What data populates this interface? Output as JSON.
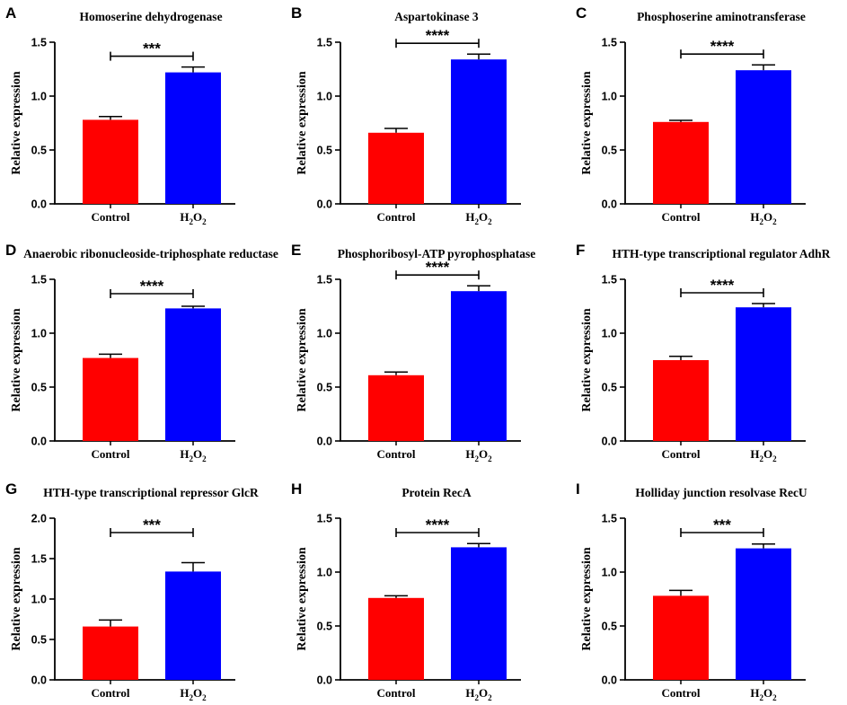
{
  "colors": {
    "control": "#ff0000",
    "treatment": "#0000ff",
    "axis": "#000000"
  },
  "chart_data": [
    {
      "panel": "A",
      "type": "bar",
      "title": "Homoserine dehydrogenase",
      "ylabel": "Relative expression",
      "categories": [
        "Control",
        "H2O2"
      ],
      "values": [
        0.78,
        1.22
      ],
      "errors": [
        0.03,
        0.05
      ],
      "ylim": [
        0,
        1.5
      ],
      "yticks": [
        "0.0",
        "0.5",
        "1.0",
        "1.5"
      ],
      "significance": "***"
    },
    {
      "panel": "B",
      "type": "bar",
      "title": "Aspartokinase 3",
      "ylabel": "Relative expression",
      "categories": [
        "Control",
        "H2O2"
      ],
      "values": [
        0.66,
        1.34
      ],
      "errors": [
        0.04,
        0.05
      ],
      "ylim": [
        0,
        1.5
      ],
      "yticks": [
        "0.0",
        "0.5",
        "1.0",
        "1.5"
      ],
      "significance": "****"
    },
    {
      "panel": "C",
      "type": "bar",
      "title": "Phosphoserine aminotransferase",
      "ylabel": "Relative expression",
      "categories": [
        "Control",
        "H2O2"
      ],
      "values": [
        0.76,
        1.24
      ],
      "errors": [
        0.015,
        0.05
      ],
      "ylim": [
        0,
        1.5
      ],
      "yticks": [
        "0.0",
        "0.5",
        "1.0",
        "1.5"
      ],
      "significance": "****"
    },
    {
      "panel": "D",
      "type": "bar",
      "title": "Anaerobic ribonucleoside-triphosphate reductase",
      "ylabel": "Relative expression",
      "categories": [
        "Control",
        "H2O2"
      ],
      "values": [
        0.77,
        1.23
      ],
      "errors": [
        0.035,
        0.02
      ],
      "ylim": [
        0,
        1.5
      ],
      "yticks": [
        "0.0",
        "0.5",
        "1.0",
        "1.5"
      ],
      "significance": "****"
    },
    {
      "panel": "E",
      "type": "bar",
      "title": "Phosphoribosyl-ATP pyrophosphatase",
      "ylabel": "Relative expression",
      "categories": [
        "Control",
        "H2O2"
      ],
      "values": [
        0.61,
        1.39
      ],
      "errors": [
        0.03,
        0.05
      ],
      "ylim": [
        0,
        1.5
      ],
      "yticks": [
        "0.0",
        "0.5",
        "1.0",
        "1.5"
      ],
      "significance": "****"
    },
    {
      "panel": "F",
      "type": "bar",
      "title": "HTH-type transcriptional regulator AdhR",
      "ylabel": "Relative expression",
      "categories": [
        "Control",
        "H2O2"
      ],
      "values": [
        0.75,
        1.24
      ],
      "errors": [
        0.035,
        0.035
      ],
      "ylim": [
        0,
        1.5
      ],
      "yticks": [
        "0.0",
        "0.5",
        "1.0",
        "1.5"
      ],
      "significance": "****"
    },
    {
      "panel": "G",
      "type": "bar",
      "title": "HTH-type transcriptional repressor GlcR",
      "ylabel": "Relative expression",
      "categories": [
        "Control",
        "H2O2"
      ],
      "values": [
        0.66,
        1.34
      ],
      "errors": [
        0.08,
        0.11
      ],
      "ylim": [
        0,
        2.0
      ],
      "yticks": [
        "0.0",
        "0.5",
        "1.0",
        "1.5",
        "2.0"
      ],
      "significance": "***"
    },
    {
      "panel": "H",
      "type": "bar",
      "title": "Protein RecA",
      "ylabel": "Relative expression",
      "categories": [
        "Control",
        "H2O2"
      ],
      "values": [
        0.76,
        1.23
      ],
      "errors": [
        0.02,
        0.035
      ],
      "ylim": [
        0,
        1.5
      ],
      "yticks": [
        "0.0",
        "0.5",
        "1.0",
        "1.5"
      ],
      "significance": "****"
    },
    {
      "panel": "I",
      "type": "bar",
      "title": "Holliday junction resolvase RecU",
      "ylabel": "Relative expression",
      "categories": [
        "Control",
        "H2O2"
      ],
      "values": [
        0.78,
        1.22
      ],
      "errors": [
        0.05,
        0.04
      ],
      "ylim": [
        0,
        1.5
      ],
      "yticks": [
        "0.0",
        "0.5",
        "1.0",
        "1.5"
      ],
      "significance": "***"
    }
  ]
}
